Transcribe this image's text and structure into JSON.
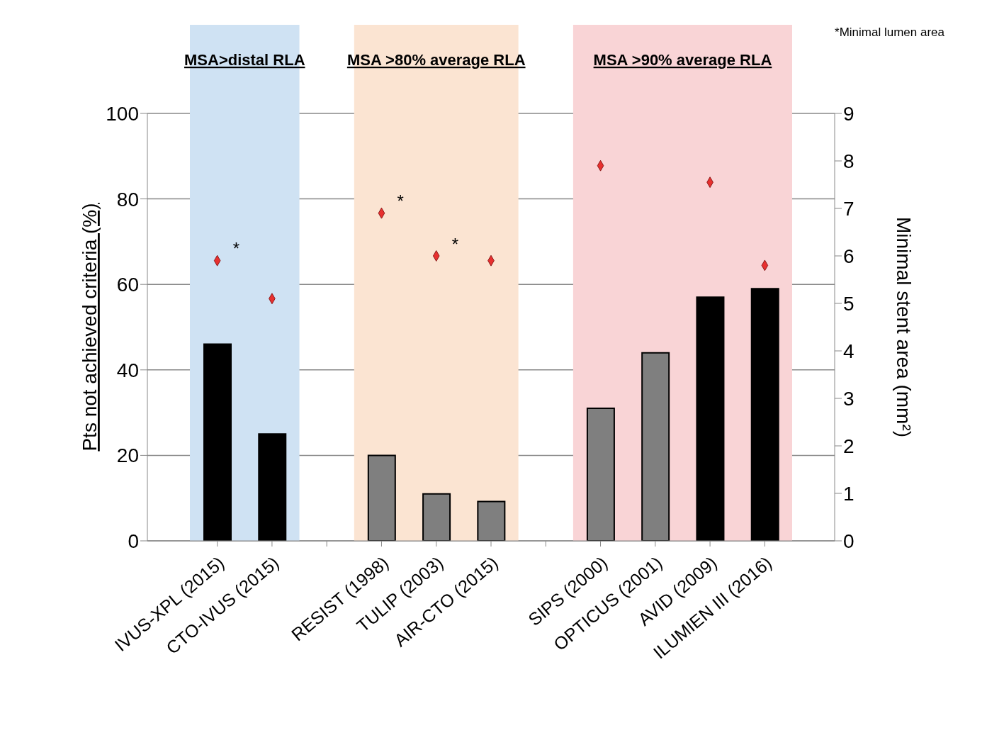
{
  "chart_data": {
    "type": "bar",
    "categories": [
      "IVUS-XPL (2015)",
      "CTO-IVUS (2015)",
      null,
      "RESIST (1998)",
      "TULIP (2003)",
      "AIR-CTO (2015)",
      null,
      "SIPS (2000)",
      "OPTICUS (2001)",
      "AVID (2009)",
      "ILUMIEN III (2016)"
    ],
    "series": [
      {
        "values": [
          46,
          25,
          null,
          20,
          11,
          9.2,
          null,
          31,
          44,
          57,
          59
        ],
        "colors": [
          "#000000",
          "#000000",
          null,
          "#7f7f7f",
          "#7f7f7f",
          "#7f7f7f",
          null,
          "#7f7f7f",
          "#7f7f7f",
          "#000000",
          "#000000"
        ]
      },
      {
        "type": "scatter",
        "axis": "y2",
        "color": "#e8302f",
        "values": [
          5.9,
          5.1,
          null,
          6.9,
          6.0,
          5.9,
          null,
          7.9,
          null,
          7.55,
          5.8
        ]
      }
    ],
    "ylabel": "Pts not achieved criteria (%)",
    "y2label": "Minimal stent area (mm²)",
    "ylim": [
      0,
      100
    ],
    "yticks": [
      0,
      20,
      40,
      60,
      80,
      100
    ],
    "y2lim": [
      0,
      9
    ],
    "y2ticks": [
      0,
      1,
      2,
      3,
      4,
      5,
      6,
      7,
      8,
      9
    ],
    "grid": "y",
    "legend": false,
    "marker": "diamond",
    "bands": [
      {
        "axis": "x",
        "from": "IVUS-XPL (2015)",
        "to": "CTO-IVUS (2015)",
        "label": "MSA>distal RLA",
        "color": "#cfe2f3"
      },
      {
        "axis": "x",
        "from": "RESIST (1998)",
        "to": "AIR-CTO (2015)",
        "label": "MSA >80% average RLA",
        "color": "#fbe4d2"
      },
      {
        "axis": "x",
        "from": "SIPS (2000)",
        "to": "ILUMIEN III (2016)",
        "label": "MSA >90% average RLA",
        "color": "#f9d4d6"
      }
    ],
    "annotations": [
      {
        "text": "*",
        "x": "IVUS-XPL (2015)",
        "y": 65.6
      },
      {
        "text": "*",
        "x": "RESIST (1998)",
        "y": 76.7
      },
      {
        "text": "*",
        "x": "TULIP (2003)",
        "y": 66.7
      },
      "*Minimal lumen area"
    ]
  }
}
